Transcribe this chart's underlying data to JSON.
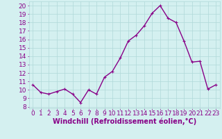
{
  "x": [
    0,
    1,
    2,
    3,
    4,
    5,
    6,
    7,
    8,
    9,
    10,
    11,
    12,
    13,
    14,
    15,
    16,
    17,
    18,
    19,
    20,
    21,
    22,
    23
  ],
  "y": [
    10.6,
    9.7,
    9.5,
    9.8,
    10.1,
    9.5,
    8.5,
    10.0,
    9.5,
    11.5,
    12.2,
    13.8,
    15.8,
    16.5,
    17.6,
    19.1,
    20.0,
    18.5,
    18.0,
    15.8,
    13.3,
    13.4,
    10.1,
    10.6
  ],
  "line_color": "#880088",
  "marker": "P",
  "marker_size": 2.5,
  "linewidth": 1.0,
  "xlabel": "Windchill (Refroidissement éolien,°C)",
  "xlabel_fontsize": 7,
  "xlim": [
    -0.5,
    23.5
  ],
  "ylim": [
    7.8,
    20.5
  ],
  "yticks": [
    8,
    9,
    10,
    11,
    12,
    13,
    14,
    15,
    16,
    17,
    18,
    19,
    20
  ],
  "xticks": [
    0,
    1,
    2,
    3,
    4,
    5,
    6,
    7,
    8,
    9,
    10,
    11,
    12,
    13,
    14,
    15,
    16,
    17,
    18,
    19,
    20,
    21,
    22,
    23
  ],
  "background_color": "#d4f0f0",
  "grid_color": "#b0d8d8",
  "tick_fontsize": 6.5,
  "tick_color": "#880088",
  "label_color": "#880088"
}
